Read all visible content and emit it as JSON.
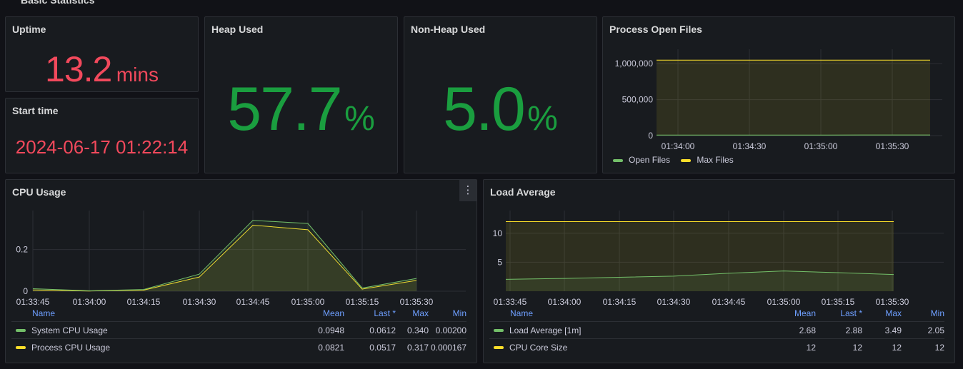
{
  "colors": {
    "green": "#73bf69",
    "yellow": "#fade2a",
    "red": "#f2495c",
    "stat_green": "#1a9e3f",
    "axis": "#ccccdc",
    "blue": "#6e9fff"
  },
  "row": {
    "title": "Basic Statistics",
    "chevron_icon": "chevron-down-icon"
  },
  "uptime": {
    "title": "Uptime",
    "value": "13.2",
    "unit": "mins"
  },
  "start_time": {
    "title": "Start time",
    "value": "2024-06-17 01:22:14"
  },
  "heap": {
    "title": "Heap Used",
    "value": "57.7",
    "unit": "%"
  },
  "nonheap": {
    "title": "Non-Heap Used",
    "value": "5.0",
    "unit": "%"
  },
  "open_files": {
    "title": "Process Open Files",
    "legend": [
      {
        "name": "Open Files",
        "color": "#73bf69"
      },
      {
        "name": "Max Files",
        "color": "#fade2a"
      }
    ]
  },
  "cpu": {
    "title": "CPU Usage",
    "menu_icon": "kebab-menu-icon",
    "columns": {
      "name": "Name",
      "mean": "Mean",
      "last": "Last *",
      "max": "Max",
      "min": "Min"
    },
    "rows": [
      {
        "name": "System CPU Usage",
        "mean": "0.0948",
        "last": "0.0612",
        "max": "0.340",
        "min": "0.00200",
        "color": "#73bf69"
      },
      {
        "name": "Process CPU Usage",
        "mean": "0.0821",
        "last": "0.0517",
        "max": "0.317",
        "min": "0.000167",
        "color": "#fade2a"
      }
    ]
  },
  "load": {
    "title": "Load Average",
    "columns": {
      "name": "Name",
      "mean": "Mean",
      "last": "Last *",
      "max": "Max",
      "min": "Min"
    },
    "rows": [
      {
        "name": "Load Average [1m]",
        "mean": "2.68",
        "last": "2.88",
        "max": "3.49",
        "min": "2.05",
        "color": "#73bf69"
      },
      {
        "name": "CPU Core Size",
        "mean": "12",
        "last": "12",
        "max": "12",
        "min": "12",
        "color": "#fade2a"
      }
    ]
  },
  "chart_data": [
    {
      "id": "open_files",
      "type": "area",
      "title": "Process Open Files",
      "x": [
        "01:33:42",
        "01:33:57",
        "01:34:12",
        "01:34:27",
        "01:34:42",
        "01:34:57",
        "01:35:12",
        "01:35:27",
        "01:35:42"
      ],
      "xticks": [
        "01:34:00",
        "01:34:30",
        "01:35:00",
        "01:35:30"
      ],
      "yticks": [
        {
          "v": 0,
          "label": "0"
        },
        {
          "v": 500000,
          "label": "500,000"
        },
        {
          "v": 1000000,
          "label": "1,000,000"
        }
      ],
      "ylim": [
        0,
        1150000
      ],
      "series": [
        {
          "name": "Open Files",
          "color": "#73bf69",
          "values": [
            8000,
            8000,
            8000,
            8000,
            8000,
            8000,
            9000,
            9000,
            9000
          ]
        },
        {
          "name": "Max Files",
          "color": "#fade2a",
          "values": [
            1048576,
            1048576,
            1048576,
            1048576,
            1048576,
            1048576,
            1048576,
            1048576,
            1048576
          ]
        }
      ]
    },
    {
      "id": "cpu",
      "type": "area",
      "title": "CPU Usage",
      "x": [
        "01:33:45",
        "01:34:00",
        "01:34:15",
        "01:34:30",
        "01:34:45",
        "01:35:00",
        "01:35:15",
        "01:35:30"
      ],
      "xticks": [
        "01:33:45",
        "01:34:00",
        "01:34:15",
        "01:34:30",
        "01:34:45",
        "01:35:00",
        "01:35:15",
        "01:35:30"
      ],
      "yticks": [
        {
          "v": 0,
          "label": "0"
        },
        {
          "v": 0.2,
          "label": "0.2"
        }
      ],
      "ylim": [
        0,
        0.37
      ],
      "series": [
        {
          "name": "System CPU Usage",
          "color": "#73bf69",
          "values": [
            0.012,
            0.002,
            0.008,
            0.082,
            0.34,
            0.325,
            0.015,
            0.0612
          ]
        },
        {
          "name": "Process CPU Usage",
          "color": "#fade2a",
          "values": [
            0.006,
            0.001,
            0.005,
            0.068,
            0.317,
            0.295,
            0.01,
            0.0517
          ]
        }
      ]
    },
    {
      "id": "load",
      "type": "area",
      "title": "Load Average",
      "x": [
        "01:33:45",
        "01:34:00",
        "01:34:15",
        "01:34:30",
        "01:34:45",
        "01:35:00",
        "01:35:15",
        "01:35:30"
      ],
      "xticks": [
        "01:33:45",
        "01:34:00",
        "01:34:15",
        "01:34:30",
        "01:34:45",
        "01:35:00",
        "01:35:15",
        "01:35:30"
      ],
      "yticks": [
        {
          "v": 5,
          "label": "5"
        },
        {
          "v": 10,
          "label": "10"
        }
      ],
      "ylim": [
        0,
        13.3
      ],
      "series": [
        {
          "name": "Load Average [1m]",
          "color": "#73bf69",
          "values": [
            2.05,
            2.2,
            2.4,
            2.6,
            3.1,
            3.49,
            3.2,
            2.88
          ]
        },
        {
          "name": "CPU Core Size",
          "color": "#fade2a",
          "values": [
            12,
            12,
            12,
            12,
            12,
            12,
            12,
            12
          ]
        }
      ]
    }
  ]
}
